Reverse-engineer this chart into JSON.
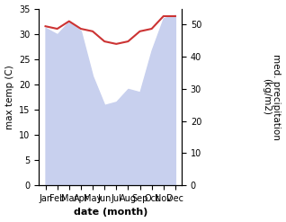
{
  "months": [
    "Jan",
    "Feb",
    "Mar",
    "Apr",
    "May",
    "Jun",
    "Jul",
    "Aug",
    "Sep",
    "Oct",
    "Nov",
    "Dec"
  ],
  "temperature": [
    31.5,
    31.0,
    32.5,
    31.0,
    30.5,
    28.5,
    28.0,
    28.5,
    30.5,
    31.0,
    33.5,
    33.5
  ],
  "precipitation": [
    49,
    47,
    51,
    48,
    34,
    25,
    26,
    30,
    29,
    42,
    52,
    53
  ],
  "temp_color": "#cc3333",
  "precip_fill_color": "#c8d0ee",
  "ylabel_left": "max temp (C)",
  "ylabel_right": "med. precipitation\n(kg/m2)",
  "xlabel": "date (month)",
  "ylim_left": [
    0,
    35
  ],
  "ylim_right": [
    0,
    55
  ],
  "yticks_left": [
    0,
    5,
    10,
    15,
    20,
    25,
    30,
    35
  ],
  "yticks_right": [
    0,
    10,
    20,
    30,
    40,
    50
  ]
}
